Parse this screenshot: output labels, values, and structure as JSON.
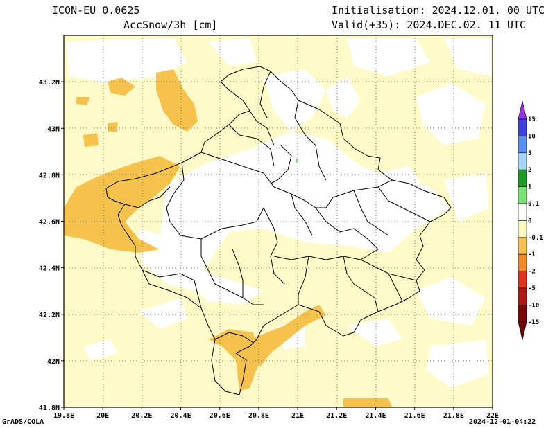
{
  "header": {
    "model": "ICON-EU 0.0625",
    "variable": "AccSnow/3h [cm]",
    "init": "Initialisation: 2024.12.01. 00 UTC",
    "valid": "Valid(+35): 2024.DEC.02. 11 UTC"
  },
  "footer": {
    "left": "GrADS/COLA",
    "right": "2024-12-01-04:22"
  },
  "map": {
    "lon_range": [
      19.8,
      22.0
    ],
    "lat_range": [
      41.8,
      43.4
    ],
    "x_ticks": [
      "19.8E",
      "20E",
      "20.2E",
      "20.4E",
      "20.6E",
      "20.8E",
      "21E",
      "21.2E",
      "21.4E",
      "21.6E",
      "21.8E",
      "22E"
    ],
    "y_ticks": [
      "41.8N",
      "42N",
      "42.2N",
      "42.4N",
      "42.6N",
      "42.8N",
      "43N",
      "43.2N"
    ],
    "grid": "dotted"
  },
  "colorbar": {
    "labels": [
      "15",
      "10",
      "5",
      "2",
      "1",
      "0.1",
      "0",
      "-0.1",
      "-1",
      "-2",
      "-5",
      "-10",
      "-15"
    ],
    "colors": [
      "#4040e0",
      "#5a8ef0",
      "#a8d4f8",
      "#1f9a2a",
      "#7ee078",
      "#ffffff",
      "#fffac8",
      "#f5c24e",
      "#ee8a2a",
      "#e03020",
      "#b01818",
      "#7a0a0a"
    ],
    "top_arrow_color": "#9a32e8",
    "bottom_arrow_color": "#6a0a0a"
  },
  "legend_colors": {
    "light_yellow": "#fffac8",
    "orange_yellow": "#f5c24e",
    "white": "#ffffff"
  }
}
